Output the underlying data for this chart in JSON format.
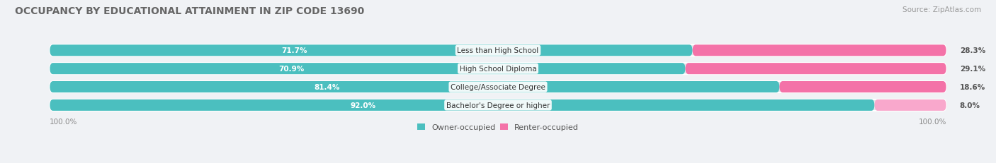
{
  "title": "OCCUPANCY BY EDUCATIONAL ATTAINMENT IN ZIP CODE 13690",
  "source": "Source: ZipAtlas.com",
  "categories": [
    "Less than High School",
    "High School Diploma",
    "College/Associate Degree",
    "Bachelor's Degree or higher"
  ],
  "owner_values": [
    71.7,
    70.9,
    81.4,
    92.0
  ],
  "renter_values": [
    28.3,
    29.1,
    18.6,
    8.0
  ],
  "owner_color": "#4BBFBF",
  "renter_color": "#F472A8",
  "renter_color_light": "#F9A8CC",
  "bg_color": "#f0f2f5",
  "bar_bg_color": "#e4e7ec",
  "title_fontsize": 10.0,
  "source_fontsize": 7.5,
  "label_fontsize": 7.5,
  "value_fontsize": 7.5,
  "legend_fontsize": 8.0,
  "axis_label_fontsize": 7.5
}
